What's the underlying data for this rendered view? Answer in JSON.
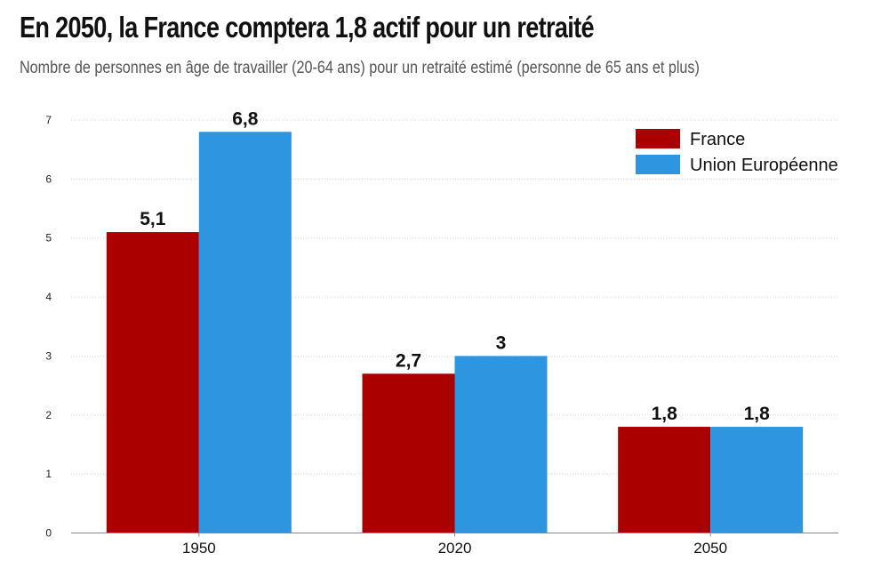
{
  "header": {
    "title": "En 2050, la France comptera 1,8 actif pour un retraité",
    "subtitle": "Nombre de personnes en âge de travailler (20-64 ans) pour un retraité estimé (personne de 65 ans et plus)"
  },
  "chart_data": {
    "type": "bar",
    "title": "En 2050, la France comptera 1,8 actif pour un retraité",
    "subtitle": "Nombre de personnes en âge de travailler (20-64 ans) pour un retraité estimé (personne de 65 ans et plus)",
    "xlabel": "",
    "ylabel": "",
    "categories": [
      "1950",
      "2020",
      "2050"
    ],
    "series": [
      {
        "name": "France",
        "color": "#ab0000",
        "values": [
          5.1,
          2.7,
          1.8
        ],
        "labels": [
          "5,1",
          "2,7",
          "1,8"
        ]
      },
      {
        "name": "Union Européenne",
        "color": "#2e96e0",
        "values": [
          6.8,
          3.0,
          1.8
        ],
        "labels": [
          "6,8",
          "3",
          "1,8"
        ]
      }
    ],
    "ylim": [
      0,
      7
    ],
    "yticks": [
      0,
      1,
      2,
      3,
      4,
      5,
      6,
      7
    ],
    "grid": true,
    "legend_position": "top-right"
  }
}
